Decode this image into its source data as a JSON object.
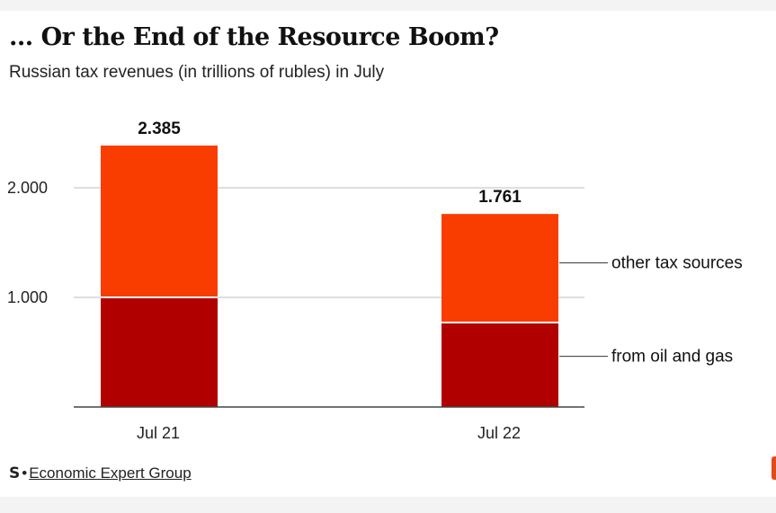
{
  "colors": {
    "other": "#f93d00",
    "oil_gas": "#b00000",
    "axis": "#444444",
    "grid": "#bdbdbd"
  },
  "chart_data": {
    "type": "bar",
    "stacked": true,
    "title": "... Or the End of the Resource Boom?",
    "subtitle": "Russian tax revenues (in trillions of rubles) in July",
    "categories": [
      "Jul 21",
      "Jul 22"
    ],
    "series": [
      {
        "name": "from oil and gas",
        "values": [
          1.0,
          0.77
        ]
      },
      {
        "name": "other tax sources",
        "values": [
          1.385,
          0.991
        ]
      }
    ],
    "totals": [
      "2.385",
      "1.761"
    ],
    "y_ticks": [
      {
        "value": 1.0,
        "label": "1.000"
      },
      {
        "value": 2.0,
        "label": "2.000"
      }
    ],
    "ylim": [
      0,
      2.5
    ],
    "grid": true,
    "legend": "direct labels at right"
  },
  "source": {
    "logo": "S",
    "separator": "•",
    "name": "Economic Expert Group"
  }
}
